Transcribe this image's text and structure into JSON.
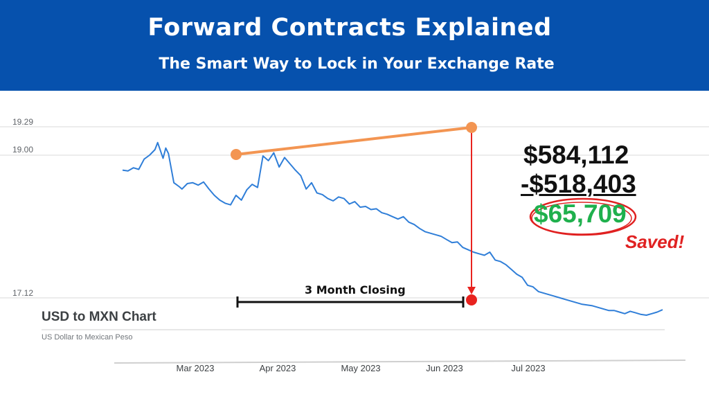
{
  "header": {
    "title": "Forward Contracts Explained",
    "subtitle": "The Smart Way to Lock in Your Exchange Rate"
  },
  "panel": {
    "title": "USD to MXN Chart",
    "subtitle": "US Dollar to Mexican Peso"
  },
  "calculation": {
    "total": "$584,112",
    "cost": "-$518,403",
    "savings": "$65,709",
    "saved_label": "Saved!"
  },
  "annotations": {
    "closing_label": "3 Month Closing"
  },
  "colors": {
    "banner": "#0651ad",
    "line": "#2f7ed8",
    "forward": "#f39552",
    "spot": "#e8231f",
    "savings": "#1fb04d"
  },
  "chart_data": {
    "type": "line",
    "title": "",
    "xlabel": "",
    "ylabel": "",
    "y_tick_labels": [
      "19.29",
      "19.00",
      "17.12"
    ],
    "x_tick_labels": [
      "Mar 2023",
      "Apr 2023",
      "May 2023",
      "Jun 2023",
      "Jul 2023"
    ],
    "grid": true,
    "series": [
      {
        "x": [
          0,
          2,
          4,
          6,
          8,
          10,
          12,
          13,
          15,
          16,
          17,
          19,
          21,
          22,
          24,
          26,
          28,
          30,
          32,
          34,
          36,
          38,
          40,
          42,
          44,
          46,
          48,
          50,
          52,
          54,
          56,
          58,
          60,
          62,
          64,
          66,
          68,
          70,
          72,
          74,
          76,
          78,
          80,
          82,
          84,
          86,
          88,
          90,
          92,
          94,
          96,
          98,
          100,
          102,
          104,
          106,
          108,
          110,
          112,
          114,
          116,
          118,
          120,
          122,
          124,
          126,
          128,
          130,
          132,
          134,
          136,
          138,
          140,
          142,
          144,
          146,
          148,
          150,
          152,
          154,
          156,
          158,
          160,
          162,
          164,
          166,
          168,
          170,
          172,
          174,
          176,
          178,
          180,
          182,
          184,
          186,
          188,
          190,
          192,
          194,
          196,
          198,
          200
        ],
        "y": [
          18.74,
          18.73,
          18.77,
          18.75,
          18.88,
          18.93,
          19.0,
          19.09,
          18.89,
          19.02,
          18.95,
          18.58,
          18.53,
          18.5,
          18.57,
          18.58,
          18.55,
          18.59,
          18.5,
          18.42,
          18.36,
          18.32,
          18.3,
          18.42,
          18.36,
          18.49,
          18.56,
          18.52,
          18.92,
          18.86,
          18.96,
          18.78,
          18.9,
          18.82,
          18.74,
          18.67,
          18.5,
          18.58,
          18.45,
          18.43,
          18.38,
          18.35,
          18.4,
          18.38,
          18.31,
          18.34,
          18.27,
          18.28,
          18.24,
          18.25,
          18.2,
          18.18,
          18.15,
          18.12,
          18.15,
          18.08,
          18.05,
          18.0,
          17.96,
          17.94,
          17.92,
          17.9,
          17.86,
          17.82,
          17.83,
          17.76,
          17.73,
          17.7,
          17.68,
          17.66,
          17.7,
          17.6,
          17.58,
          17.54,
          17.48,
          17.42,
          17.38,
          17.28,
          17.26,
          17.2,
          17.18,
          17.16,
          17.14,
          17.12,
          17.1,
          17.08,
          17.06,
          17.04,
          17.03,
          17.02,
          17.0,
          16.98,
          16.96,
          16.96,
          16.94,
          16.92,
          16.95,
          16.93,
          16.91,
          16.9,
          16.92,
          16.94,
          16.97
        ]
      }
    ]
  }
}
